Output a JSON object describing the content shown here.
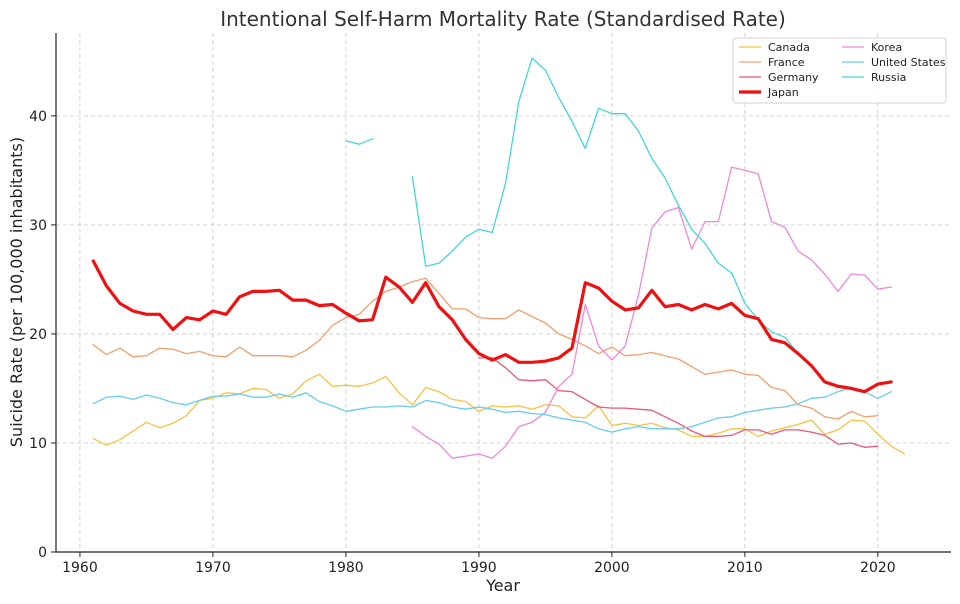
{
  "chart_data": {
    "type": "line",
    "title": "Intentional Self-Harm Mortality Rate (Standardised Rate)",
    "xlabel": "Year",
    "ylabel": "Suicide Rate (per 100,000 inhabitants)",
    "xlim": [
      1958.2,
      2025.5
    ],
    "ylim": [
      0,
      47.6
    ],
    "xticks": [
      1960,
      1970,
      1980,
      1990,
      2000,
      2010,
      2020
    ],
    "yticks": [
      0,
      10,
      20,
      30,
      40
    ],
    "grid": true,
    "legend_position": "top-right",
    "series": [
      {
        "name": "Canada",
        "color": "#f7c242",
        "width": 1.3,
        "x": [
          1961,
          1962,
          1963,
          1964,
          1965,
          1966,
          1967,
          1968,
          1969,
          1970,
          1971,
          1972,
          1973,
          1974,
          1975,
          1976,
          1977,
          1978,
          1979,
          1980,
          1981,
          1982,
          1983,
          1984,
          1985,
          1986,
          1987,
          1988,
          1989,
          1990,
          1991,
          1992,
          1993,
          1994,
          1995,
          1996,
          1997,
          1998,
          1999,
          2000,
          2001,
          2002,
          2003,
          2004,
          2005,
          2006,
          2007,
          2008,
          2009,
          2010,
          2011,
          2012,
          2013,
          2014,
          2015,
          2016,
          2017,
          2018,
          2019,
          2020,
          2021,
          2022
        ],
        "y": [
          10.4,
          9.8,
          10.3,
          11.1,
          11.9,
          11.4,
          11.8,
          12.5,
          13.9,
          14.1,
          14.6,
          14.5,
          15.0,
          14.9,
          14.1,
          14.5,
          15.7,
          16.3,
          15.2,
          15.3,
          15.2,
          15.5,
          16.1,
          14.6,
          13.5,
          15.1,
          14.7,
          14.0,
          13.8,
          12.9,
          13.4,
          13.3,
          13.4,
          13.1,
          13.5,
          13.4,
          12.4,
          12.3,
          13.4,
          11.6,
          11.8,
          11.6,
          11.8,
          11.4,
          11.2,
          10.6,
          10.6,
          10.9,
          11.3,
          11.3,
          10.6,
          11.1,
          11.4,
          11.7,
          12.1,
          10.8,
          11.2,
          12.1,
          12.0,
          10.8,
          9.7,
          9.0
        ]
      },
      {
        "name": "France",
        "color": "#f0a070",
        "width": 1.3,
        "x": [
          1961,
          1962,
          1963,
          1964,
          1965,
          1966,
          1967,
          1968,
          1969,
          1970,
          1971,
          1972,
          1973,
          1974,
          1975,
          1976,
          1977,
          1978,
          1979,
          1980,
          1981,
          1982,
          1983,
          1984,
          1985,
          1986,
          1987,
          1988,
          1989,
          1990,
          1991,
          1992,
          1993,
          1994,
          1995,
          1996,
          1997,
          1998,
          1999,
          2000,
          2001,
          2002,
          2003,
          2004,
          2005,
          2006,
          2007,
          2008,
          2009,
          2010,
          2011,
          2012,
          2013,
          2014,
          2015,
          2016,
          2017,
          2018,
          2019,
          2020
        ],
        "y": [
          19.0,
          18.1,
          18.7,
          17.9,
          18.0,
          18.7,
          18.6,
          18.2,
          18.4,
          18.0,
          17.9,
          18.8,
          18.0,
          18.0,
          18.0,
          17.9,
          18.5,
          19.4,
          20.8,
          21.5,
          21.8,
          23.0,
          23.9,
          24.3,
          24.8,
          25.1,
          23.7,
          22.3,
          22.3,
          21.5,
          21.4,
          21.4,
          22.2,
          21.6,
          21.0,
          20.0,
          19.5,
          18.9,
          18.2,
          18.8,
          18.0,
          18.1,
          18.3,
          18.0,
          17.7,
          17.0,
          16.3,
          16.5,
          16.7,
          16.3,
          16.2,
          15.1,
          14.8,
          13.5,
          13.2,
          12.4,
          12.2,
          12.9,
          12.4,
          12.5
        ]
      },
      {
        "name": "Germany",
        "color": "#e8587a",
        "width": 1.3,
        "x": [
          1990,
          1991,
          1992,
          1993,
          1994,
          1995,
          1996,
          1997,
          1998,
          1999,
          2000,
          2001,
          2002,
          2003,
          2004,
          2005,
          2006,
          2007,
          2008,
          2009,
          2010,
          2011,
          2012,
          2013,
          2014,
          2015,
          2016,
          2017,
          2018,
          2019,
          2020
        ],
        "y": [
          17.8,
          17.8,
          16.9,
          15.8,
          15.7,
          15.8,
          14.8,
          14.7,
          14.0,
          13.3,
          13.2,
          13.2,
          13.1,
          13.0,
          12.4,
          11.8,
          11.1,
          10.6,
          10.6,
          10.7,
          11.2,
          11.2,
          10.8,
          11.2,
          11.2,
          11.0,
          10.7,
          9.9,
          10.0,
          9.6,
          9.7
        ]
      },
      {
        "name": "Japan",
        "color": "#ee1111",
        "width": 3.2,
        "x": [
          1961,
          1962,
          1963,
          1964,
          1965,
          1966,
          1967,
          1968,
          1969,
          1970,
          1971,
          1972,
          1973,
          1974,
          1975,
          1976,
          1977,
          1978,
          1979,
          1980,
          1981,
          1982,
          1983,
          1984,
          1985,
          1986,
          1987,
          1988,
          1989,
          1990,
          1991,
          1992,
          1993,
          1994,
          1995,
          1996,
          1997,
          1998,
          1999,
          2000,
          2001,
          2002,
          2003,
          2004,
          2005,
          2006,
          2007,
          2008,
          2009,
          2010,
          2011,
          2012,
          2013,
          2014,
          2015,
          2016,
          2017,
          2018,
          2019,
          2020,
          2021
        ],
        "y": [
          26.7,
          24.4,
          22.8,
          22.1,
          21.8,
          21.8,
          20.4,
          21.5,
          21.3,
          22.1,
          21.8,
          23.4,
          23.9,
          23.9,
          24.0,
          23.1,
          23.1,
          22.6,
          22.7,
          21.9,
          21.2,
          21.3,
          25.2,
          24.3,
          22.9,
          24.7,
          22.5,
          21.3,
          19.5,
          18.2,
          17.6,
          18.1,
          17.4,
          17.4,
          17.5,
          17.8,
          18.7,
          24.7,
          24.2,
          23.0,
          22.2,
          22.4,
          24.0,
          22.5,
          22.7,
          22.2,
          22.7,
          22.3,
          22.8,
          21.7,
          21.4,
          19.5,
          19.2,
          18.2,
          17.1,
          15.6,
          15.2,
          15.0,
          14.7,
          15.4,
          15.6
        ]
      },
      {
        "name": "Korea",
        "color": "#ee88d8",
        "width": 1.3,
        "x": [
          1985,
          1986,
          1987,
          1988,
          1989,
          1990,
          1991,
          1992,
          1993,
          1994,
          1995,
          1996,
          1997,
          1998,
          1999,
          2000,
          2001,
          2002,
          2003,
          2004,
          2005,
          2006,
          2007,
          2008,
          2009,
          2010,
          2011,
          2012,
          2013,
          2014,
          2015,
          2016,
          2017,
          2018,
          2019,
          2020,
          2021
        ],
        "y": [
          11.5,
          10.6,
          9.9,
          8.6,
          8.8,
          9.0,
          8.6,
          9.7,
          11.5,
          11.9,
          12.8,
          15.2,
          16.3,
          22.7,
          18.9,
          17.6,
          18.9,
          23.6,
          29.7,
          31.2,
          31.6,
          27.8,
          30.3,
          30.3,
          35.3,
          35.0,
          34.7,
          30.3,
          29.8,
          27.6,
          26.8,
          25.5,
          23.9,
          25.5,
          25.4,
          24.1,
          24.3
        ]
      },
      {
        "name": "United States",
        "color": "#66ccee",
        "width": 1.3,
        "x": [
          1961,
          1962,
          1963,
          1964,
          1965,
          1966,
          1967,
          1968,
          1969,
          1970,
          1971,
          1972,
          1973,
          1974,
          1975,
          1976,
          1977,
          1978,
          1979,
          1980,
          1981,
          1982,
          1983,
          1984,
          1985,
          1986,
          1987,
          1988,
          1989,
          1990,
          1991,
          1992,
          1993,
          1994,
          1995,
          1996,
          1997,
          1998,
          1999,
          2000,
          2001,
          2002,
          2003,
          2004,
          2005,
          2006,
          2007,
          2008,
          2009,
          2010,
          2011,
          2012,
          2013,
          2014,
          2015,
          2016,
          2017,
          2018,
          2019,
          2020,
          2021
        ],
        "y": [
          13.6,
          14.2,
          14.3,
          14.0,
          14.4,
          14.1,
          13.7,
          13.5,
          13.9,
          14.3,
          14.3,
          14.5,
          14.2,
          14.2,
          14.5,
          14.2,
          14.6,
          13.8,
          13.4,
          12.9,
          13.1,
          13.3,
          13.3,
          13.4,
          13.3,
          13.9,
          13.7,
          13.3,
          13.1,
          13.3,
          13.1,
          12.8,
          12.9,
          12.7,
          12.6,
          12.3,
          12.1,
          11.9,
          11.3,
          11.0,
          11.3,
          11.5,
          11.3,
          11.3,
          11.3,
          11.5,
          11.9,
          12.3,
          12.4,
          12.8,
          13.0,
          13.2,
          13.3,
          13.6,
          14.1,
          14.2,
          14.7,
          15.1,
          14.7,
          14.1,
          14.7
        ]
      },
      {
        "name": "Russia",
        "color": "#44d6d6",
        "width": 1.3,
        "x": [
          1980,
          1981,
          1982,
          null,
          1985,
          1986,
          1987,
          1988,
          1989,
          1990,
          1991,
          1992,
          1993,
          1994,
          1995,
          1996,
          1997,
          1998,
          1999,
          2000,
          2001,
          2002,
          2003,
          2004,
          2005,
          2006,
          2007,
          2008,
          2009,
          2010,
          2011,
          2012,
          2013,
          2014,
          2015,
          2016,
          2017,
          2018,
          2019
        ],
        "y": [
          37.7,
          37.4,
          37.9,
          null,
          34.4,
          26.2,
          26.5,
          27.6,
          28.9,
          29.6,
          29.3,
          33.8,
          41.3,
          45.3,
          44.2,
          41.7,
          39.5,
          37.0,
          40.7,
          40.2,
          40.2,
          38.6,
          36.1,
          34.3,
          31.8,
          29.6,
          28.3,
          26.5,
          25.6,
          22.8,
          21.3,
          20.2,
          19.7,
          18.2,
          17.0,
          15.6,
          15.3,
          15.1,
          14.7
        ]
      }
    ],
    "legend_columns": [
      [
        "Canada",
        "France",
        "Germany",
        "Japan"
      ],
      [
        "Korea",
        "United States",
        "Russia"
      ]
    ]
  }
}
